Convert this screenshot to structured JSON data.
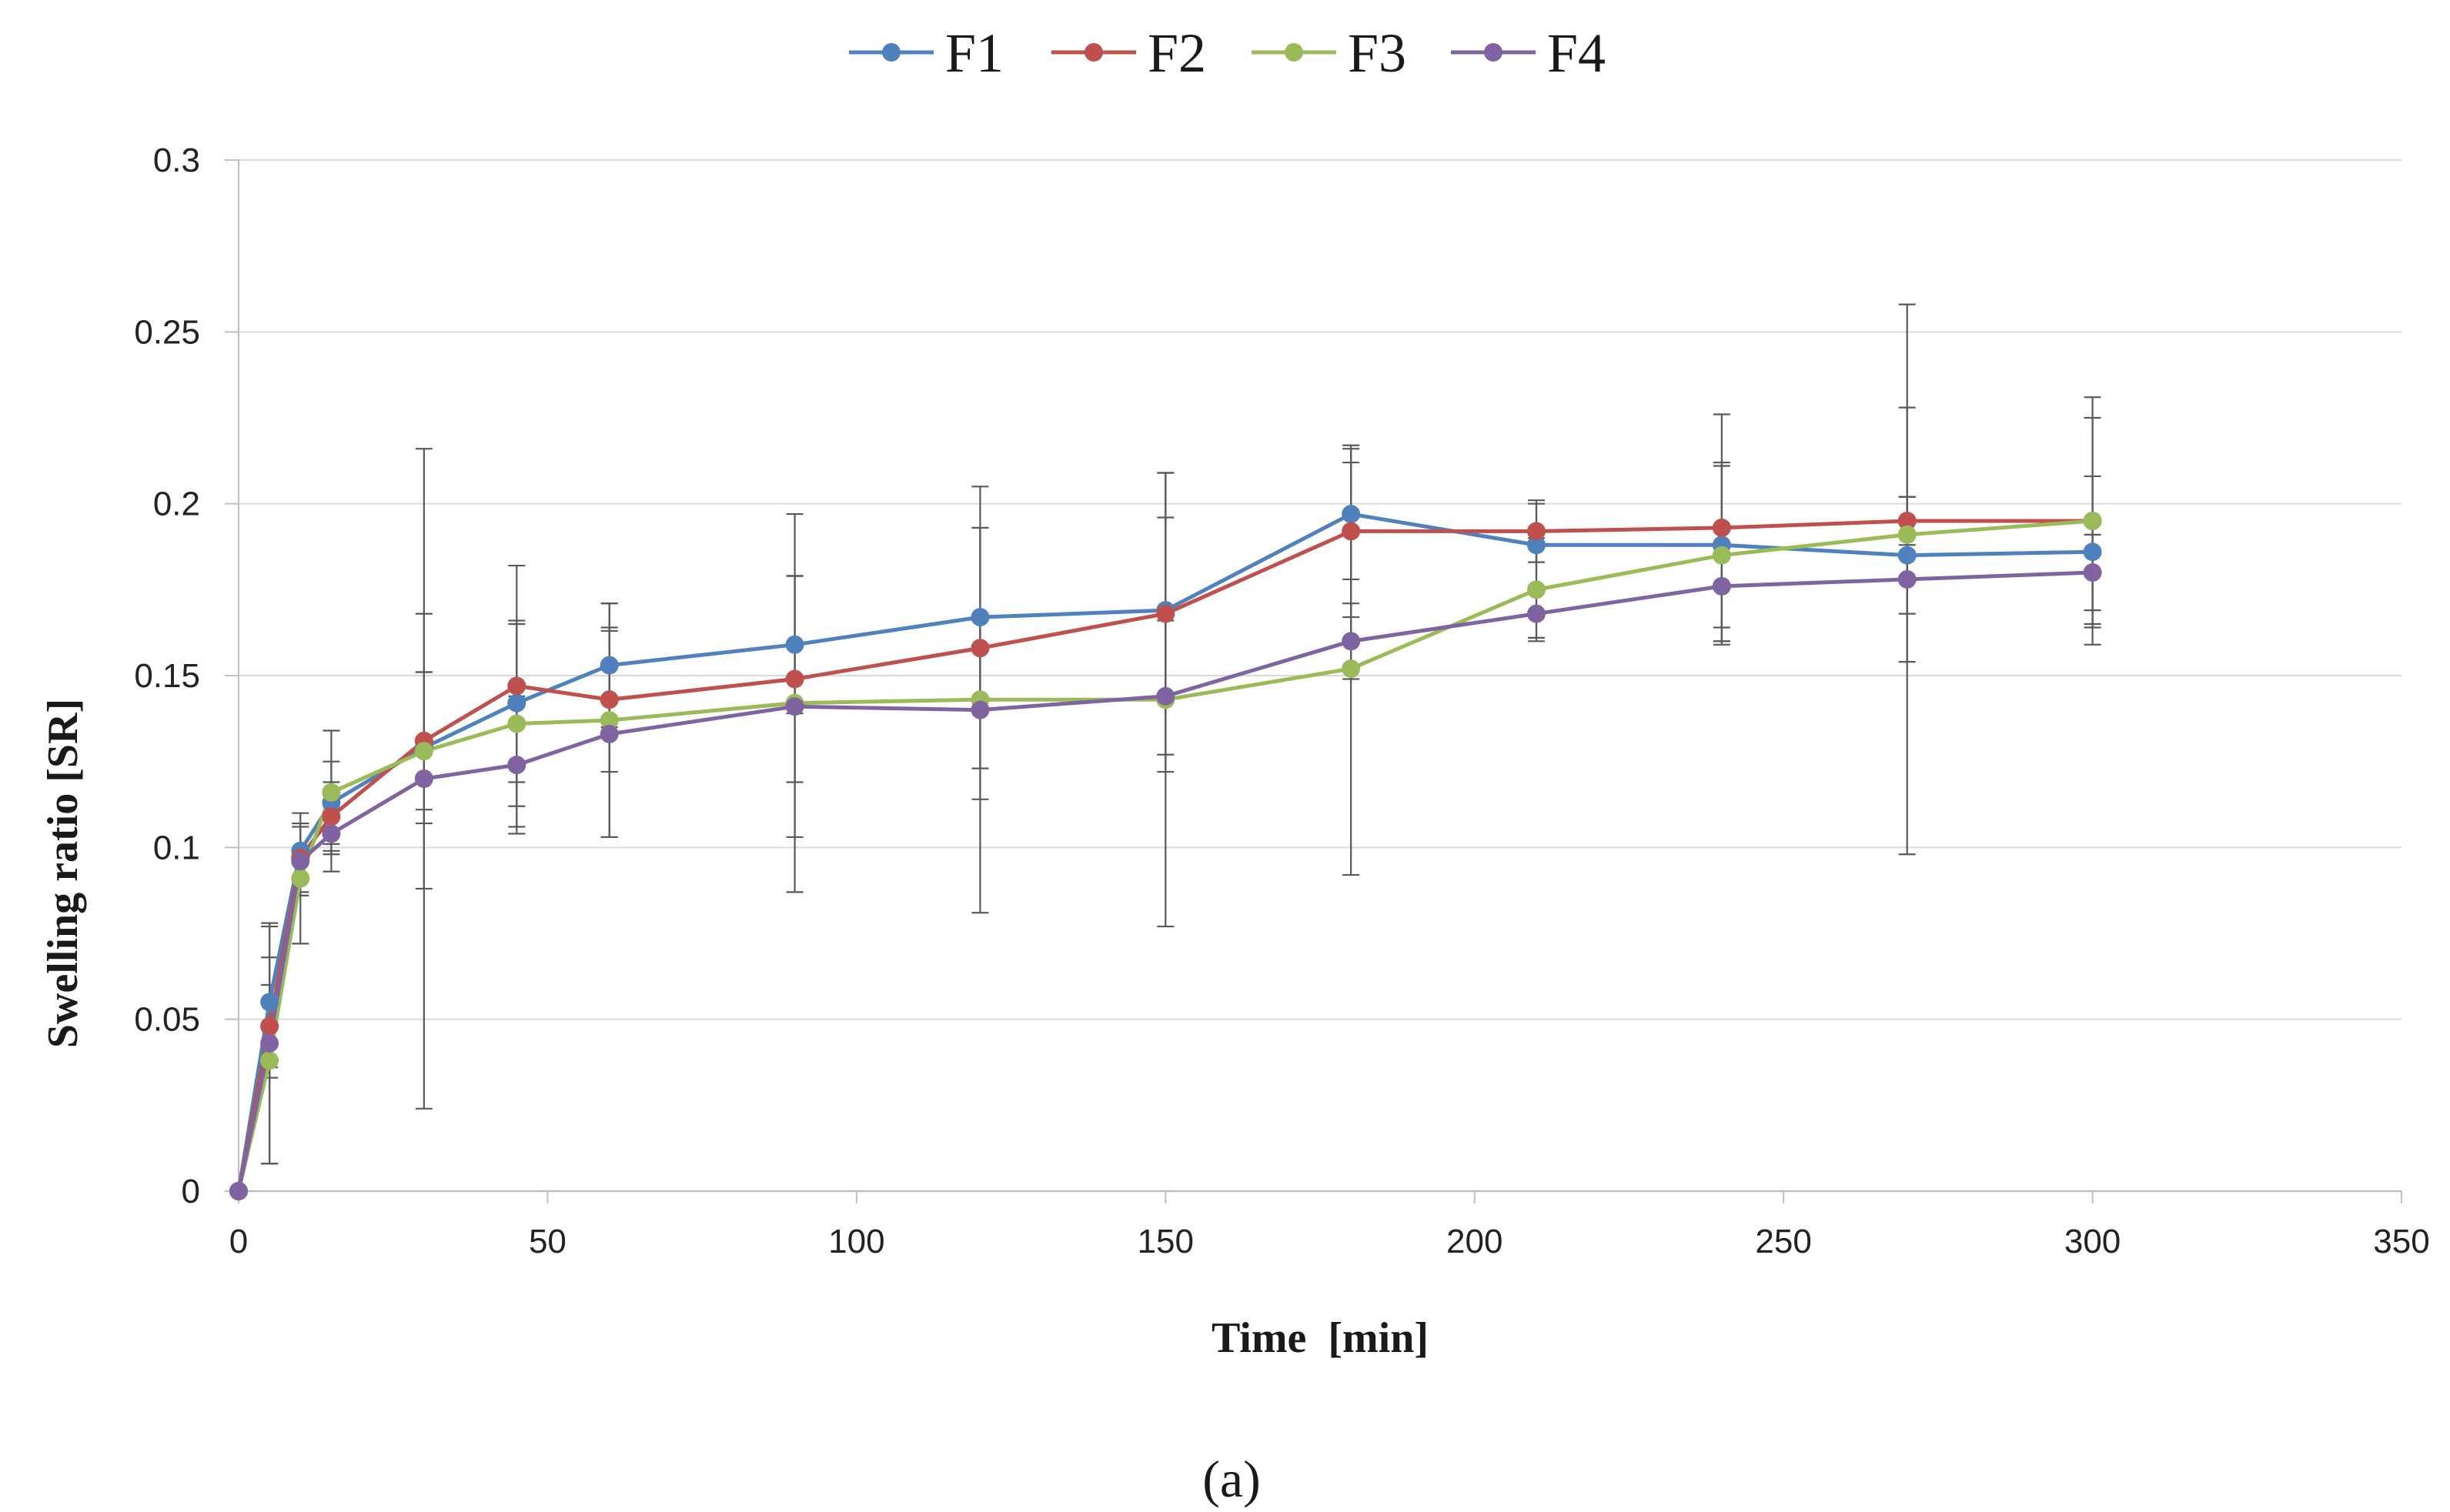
{
  "chart_data": {
    "type": "line",
    "title": "",
    "xlabel": "Time  [min]",
    "ylabel": "Swelling  ratio [SR]",
    "caption": "(a)",
    "xlim": [
      0,
      350
    ],
    "ylim": [
      0,
      0.3
    ],
    "x_ticks": [
      "0",
      "50",
      "100",
      "150",
      "200",
      "250",
      "300",
      "350"
    ],
    "y_ticks": [
      "0",
      "0.05",
      "0.1",
      "0.15",
      "0.2",
      "0.25",
      "0.3"
    ],
    "grid": "horizontal",
    "legend_position": "top-center",
    "x": [
      0,
      5,
      10,
      15,
      30,
      45,
      60,
      90,
      120,
      150,
      180,
      210,
      240,
      270,
      300
    ],
    "series": [
      {
        "name": "F1",
        "color": "#4f81bd",
        "values": [
          0,
          0.055,
          0.099,
          0.113,
          0.129,
          0.142,
          0.153,
          0.159,
          0.167,
          0.169,
          0.197,
          0.188,
          0.188,
          0.185,
          0.186
        ],
        "errors": [
          0,
          0.022,
          0.008,
          0.012,
          0.022,
          0.023,
          0.018,
          0.02,
          0.026,
          0.027,
          0.019,
          0.012,
          0.024,
          0.017,
          0.022
        ]
      },
      {
        "name": "F2",
        "color": "#c0504d",
        "values": [
          0,
          0.048,
          0.097,
          0.109,
          0.131,
          0.147,
          0.143,
          0.149,
          0.158,
          0.168,
          0.192,
          0.192,
          0.193,
          0.195,
          0.195
        ],
        "errors": [
          0,
          0.012,
          0.01,
          0.01,
          0.02,
          0.035,
          0.021,
          0.03,
          0.035,
          0.041,
          0.025,
          0.009,
          0.033,
          0.007,
          0.03
        ]
      },
      {
        "name": "F3",
        "color": "#9bbb59",
        "values": [
          0,
          0.038,
          0.091,
          0.116,
          0.128,
          0.136,
          0.137,
          0.142,
          0.143,
          0.143,
          0.152,
          0.175,
          0.185,
          0.191,
          0.195
        ],
        "errors": [
          0,
          0.03,
          0.019,
          0.018,
          0.04,
          0.03,
          0.034,
          0.055,
          0.062,
          0.066,
          0.06,
          0.015,
          0.026,
          0.037,
          0.036
        ]
      },
      {
        "name": "F4",
        "color": "#8064a2",
        "values": [
          0,
          0.043,
          0.096,
          0.104,
          0.12,
          0.124,
          0.133,
          0.141,
          0.14,
          0.144,
          0.16,
          0.168,
          0.176,
          0.178,
          0.18
        ],
        "errors": [
          0,
          0.035,
          0.01,
          0.011,
          0.096,
          0.02,
          0.03,
          0.038,
          0.026,
          0.022,
          0.011,
          0.007,
          0.016,
          0.08,
          0.011
        ]
      }
    ]
  }
}
